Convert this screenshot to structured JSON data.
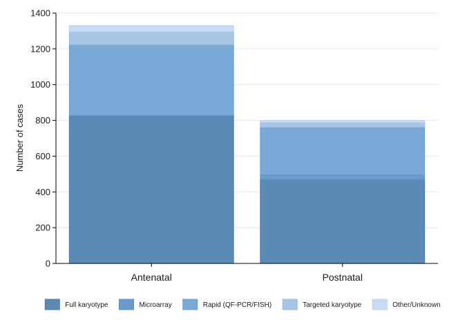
{
  "chart_data": {
    "type": "bar",
    "stacked": true,
    "categories": [
      "Antenatal",
      "Postnatal"
    ],
    "ylabel": "Number of cases",
    "ylim": [
      0,
      1400
    ],
    "yticks": [
      "0",
      "200",
      "400",
      "600",
      "800",
      "1000",
      "1200",
      "1400"
    ],
    "grid": true,
    "legend_position": "bottom",
    "series": [
      {
        "name": "Full karyotype",
        "values": [
          825,
          468
        ],
        "color": "#5b8ab5",
        "edge": "#4a76a3"
      },
      {
        "name": "Microarray",
        "values": [
          3,
          28
        ],
        "color": "#6b9bcb",
        "edge": "#5a8cc0"
      },
      {
        "name": "Rapid (QF-PCR/FISH)",
        "values": [
          395,
          265
        ],
        "color": "#79a9d6",
        "edge": "#6a9cd0"
      },
      {
        "name": "Targeted karyotype",
        "values": [
          72,
          27
        ],
        "color": "#a7c6e5",
        "edge": "#94b9df"
      },
      {
        "name": "Other/Unknown",
        "values": [
          35,
          12
        ],
        "color": "#c9dcf1",
        "edge": "#b8d0ec"
      }
    ]
  }
}
